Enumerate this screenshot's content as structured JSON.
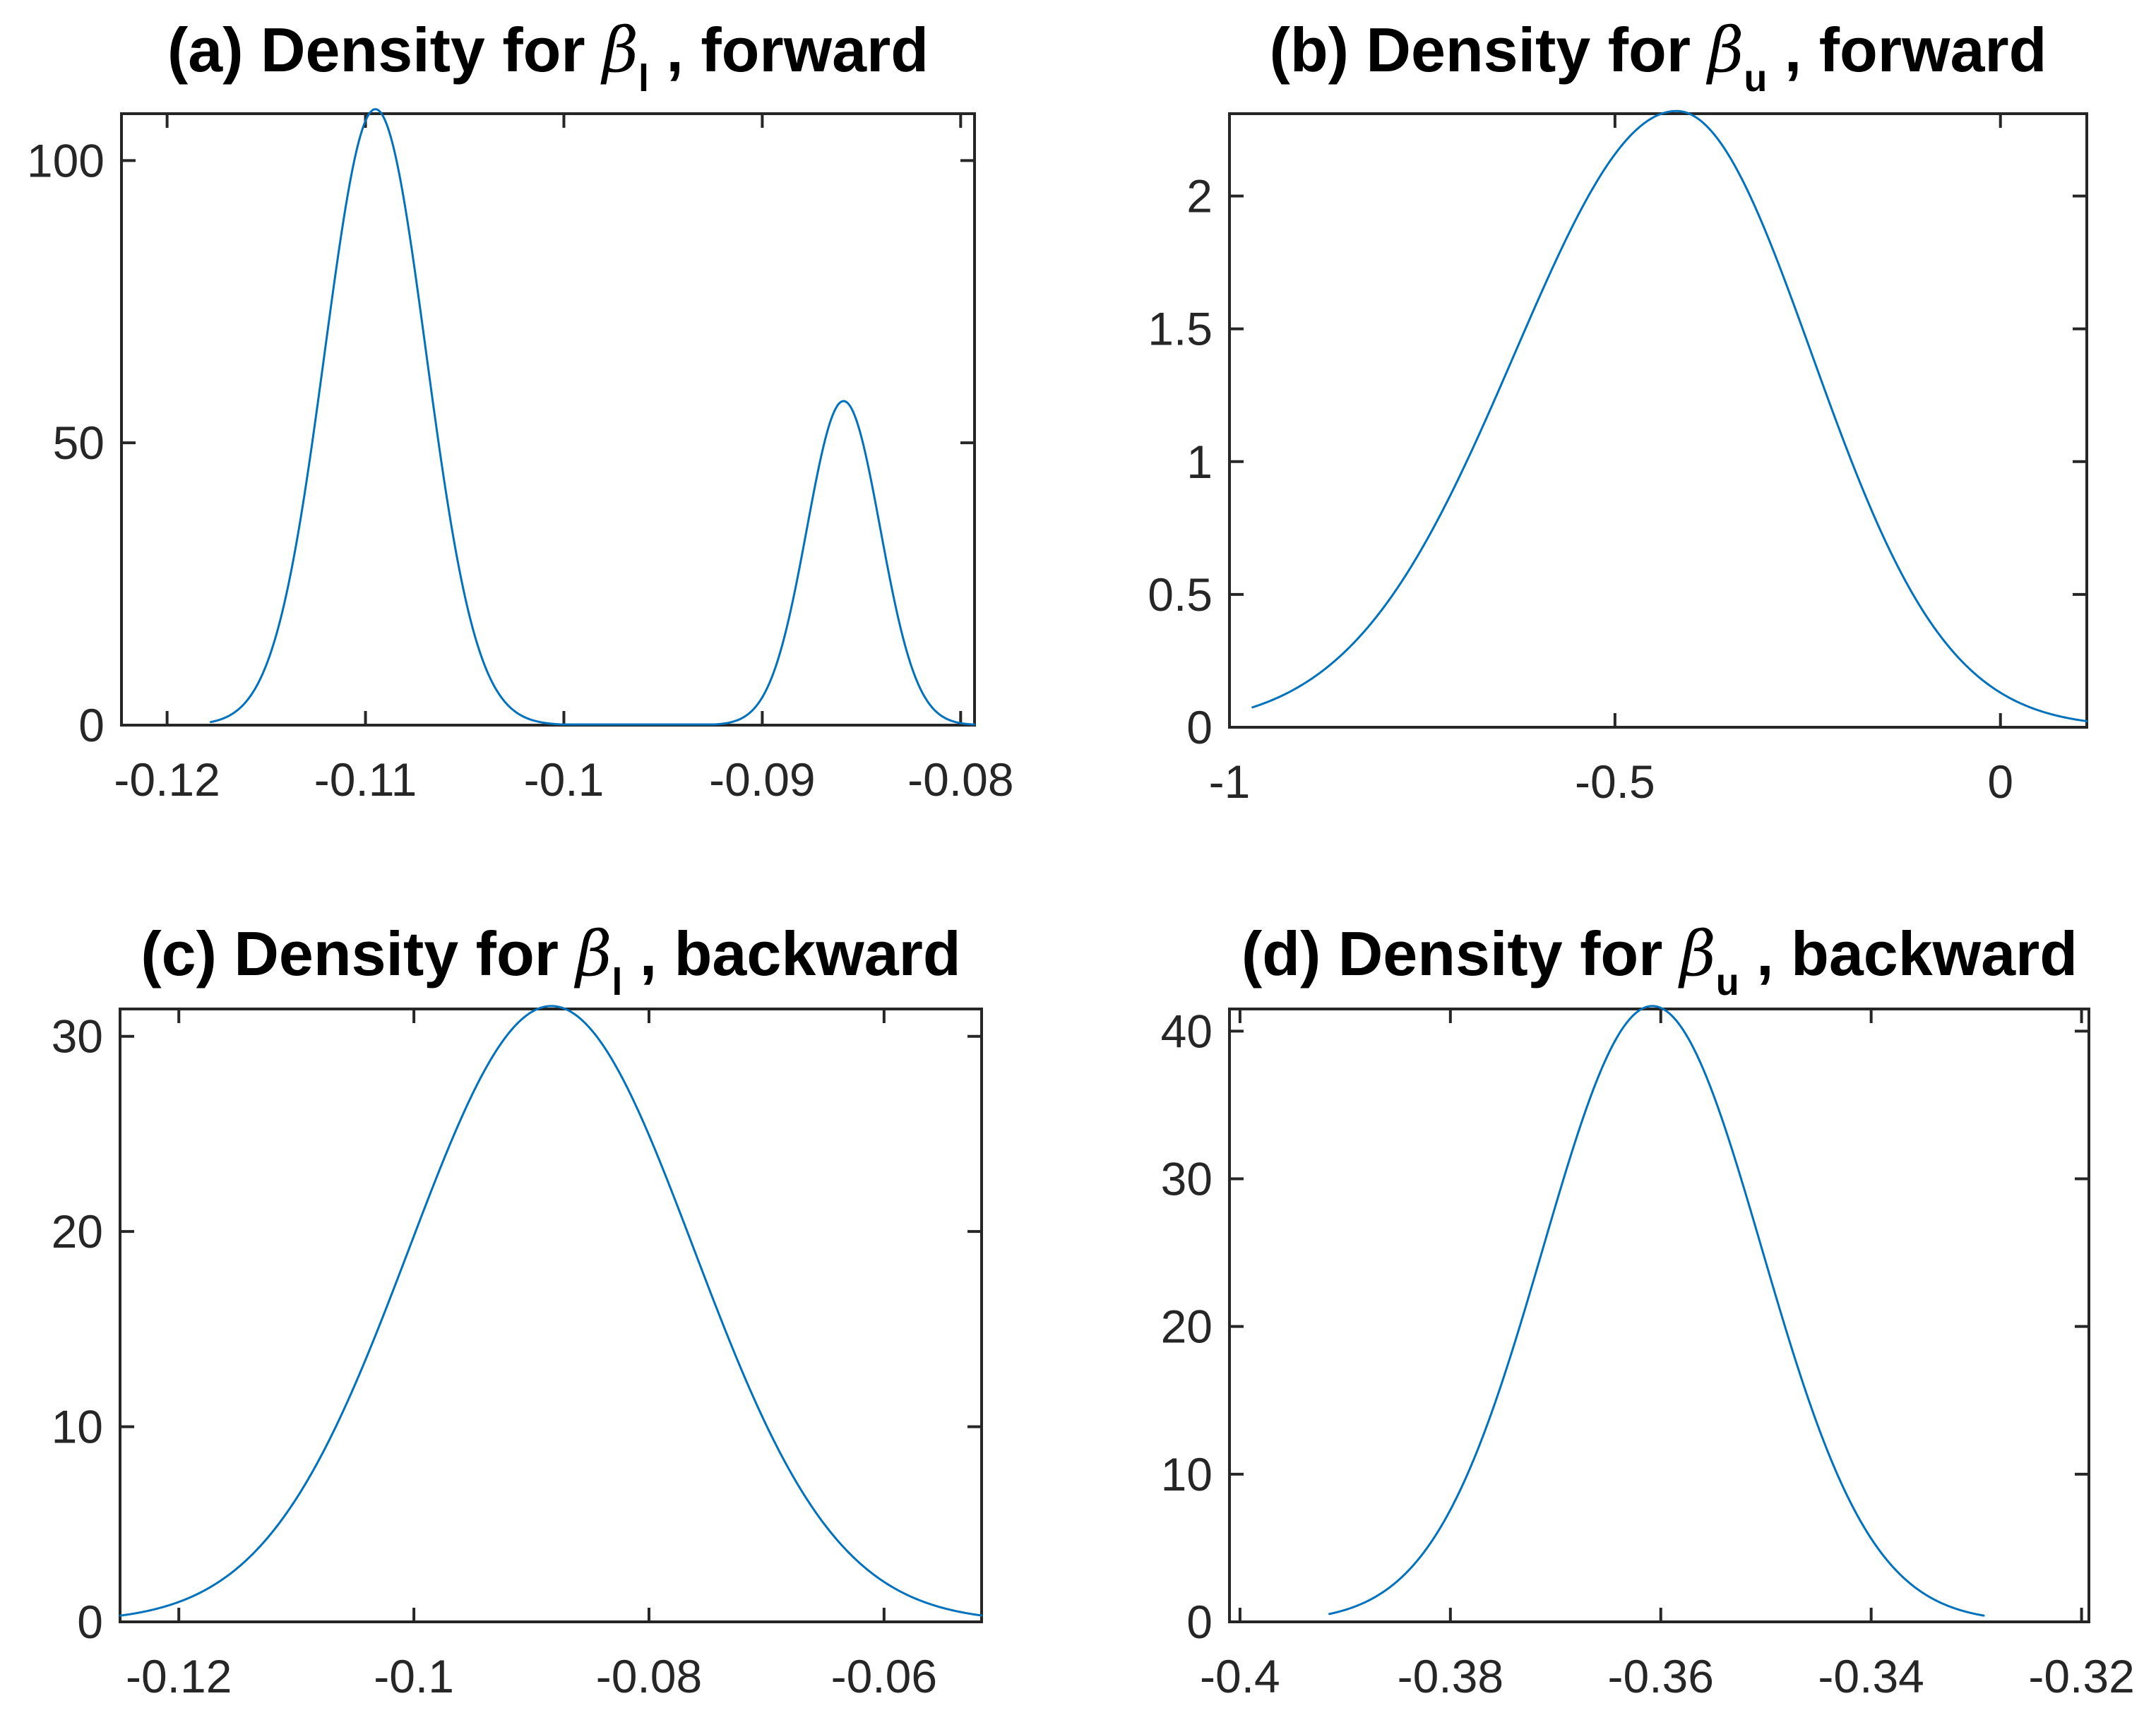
{
  "figure": {
    "background": "#ffffff",
    "axis_color": "#262626",
    "curve_color": "#0072BD",
    "title_color": "#000000",
    "grid": false,
    "legend": null
  },
  "chart_data": [
    {
      "id": "a",
      "type": "line",
      "title": {
        "prefix": "(a) Density for ",
        "symbol": "β",
        "subscript": "l",
        "suffix": " , forward"
      },
      "xlabel": "",
      "ylabel": "",
      "xlim": [
        -0.1223,
        -0.0793
      ],
      "ylim": [
        0,
        108.3
      ],
      "xticks": {
        "values": [
          -0.12,
          -0.11,
          -0.1,
          -0.09,
          -0.08
        ],
        "labels": [
          "-0.12",
          "-0.11",
          "-0.1",
          "-0.09",
          "-0.08"
        ]
      },
      "yticks": {
        "values": [
          0,
          50,
          100
        ],
        "labels": [
          "0",
          "50",
          "100"
        ]
      },
      "curve": {
        "model": "gaussian_mixture",
        "x_range": [
          -0.1178,
          -0.0793
        ],
        "components": [
          {
            "peak_x": -0.1095,
            "peak_y": 109.1,
            "sigma": 0.00255
          },
          {
            "peak_x": -0.0859,
            "peak_y": 57.4,
            "sigma": 0.00185
          }
        ],
        "peaks": [
          {
            "x": -0.1095,
            "y": 109.1
          },
          {
            "x": -0.0859,
            "y": 57.4
          }
        ]
      }
    },
    {
      "id": "b",
      "type": "line",
      "title": {
        "prefix": "(b) Density for ",
        "symbol": "β",
        "subscript": "u",
        "suffix": " , forward"
      },
      "xlabel": "",
      "ylabel": "",
      "xlim": [
        -1,
        0.112
      ],
      "ylim": [
        0,
        2.31
      ],
      "xticks": {
        "values": [
          -1,
          -0.5,
          0
        ],
        "labels": [
          "-1",
          "-0.5",
          "0"
        ]
      },
      "yticks": {
        "values": [
          0,
          0.5,
          1,
          1.5,
          2
        ],
        "labels": [
          "0",
          "0.5",
          "1",
          "1.5",
          "2"
        ]
      },
      "curve": {
        "model": "gaussian_mixture",
        "x_range": [
          -0.97,
          0.112
        ],
        "components": [
          {
            "peak_x": -0.42,
            "peak_y": 2.32,
            "sigma": 0.19,
            "sigma_left": 0.21,
            "sigma_right": 0.175
          }
        ],
        "peaks": [
          {
            "x": -0.42,
            "y": 2.32
          }
        ]
      }
    },
    {
      "id": "c",
      "type": "line",
      "title": {
        "prefix": "(c) Density for ",
        "symbol": "β",
        "subscript": "l",
        "suffix": " , backward"
      },
      "xlabel": "",
      "ylabel": "",
      "xlim": [
        -0.125,
        -0.0517
      ],
      "ylim": [
        0,
        31.4
      ],
      "xticks": {
        "values": [
          -0.12,
          -0.1,
          -0.08,
          -0.06
        ],
        "labels": [
          "-0.12",
          "-0.1",
          "-0.08",
          "-0.06"
        ]
      },
      "yticks": {
        "values": [
          0,
          10,
          20,
          30
        ],
        "labels": [
          "0",
          "10",
          "20",
          "30"
        ]
      },
      "curve": {
        "model": "gaussian_mixture",
        "x_range": [
          -0.125,
          -0.0517
        ],
        "components": [
          {
            "peak_x": -0.0883,
            "peak_y": 31.55,
            "sigma": 0.0121
          }
        ],
        "peaks": [
          {
            "x": -0.0883,
            "y": 31.55
          }
        ]
      }
    },
    {
      "id": "d",
      "type": "line",
      "title": {
        "prefix": "(d) Density for ",
        "symbol": "β",
        "subscript": "u",
        "suffix": " , backward"
      },
      "xlabel": "",
      "ylabel": "",
      "xlim": [
        -0.401,
        -0.3193
      ],
      "ylim": [
        0,
        41.5
      ],
      "xticks": {
        "values": [
          -0.4,
          -0.38,
          -0.36,
          -0.34,
          -0.32
        ],
        "labels": [
          "-0.4",
          "-0.38",
          "-0.36",
          "-0.34",
          "-0.32"
        ]
      },
      "yticks": {
        "values": [
          0,
          10,
          20,
          30,
          40
        ],
        "labels": [
          "0",
          "10",
          "20",
          "30",
          "40"
        ]
      },
      "curve": {
        "model": "gaussian_mixture",
        "x_range": [
          -0.3915,
          -0.3293
        ],
        "components": [
          {
            "peak_x": -0.3608,
            "peak_y": 41.7,
            "sigma": 0.0104
          }
        ],
        "peaks": [
          {
            "x": -0.3608,
            "y": 41.7
          }
        ]
      }
    }
  ]
}
